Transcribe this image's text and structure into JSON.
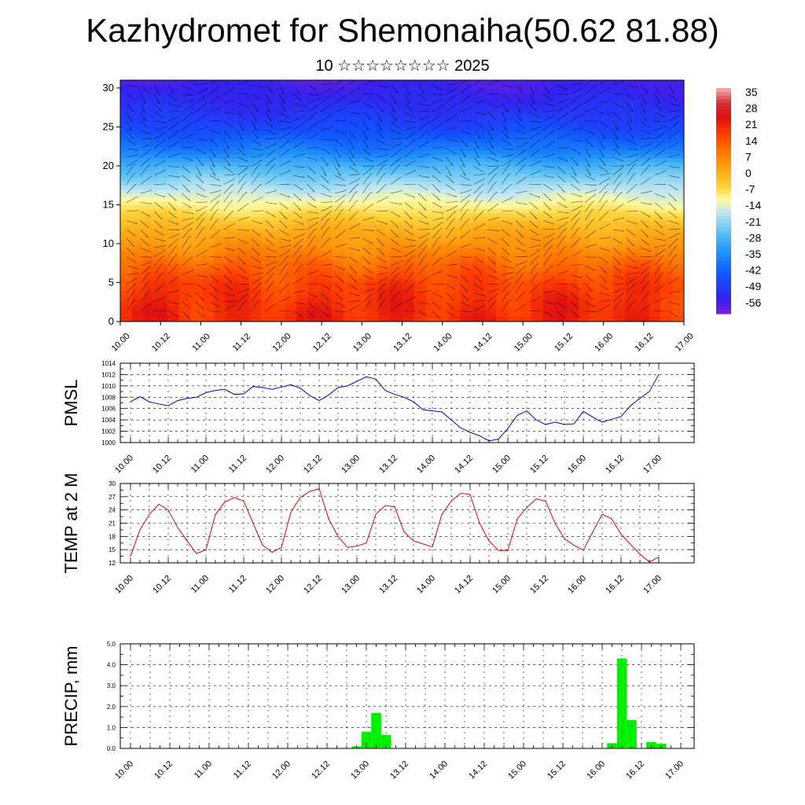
{
  "title": "Kazhydromet for Shemonaiha(50.62 81.88)",
  "subtitle": "10 ☆☆☆☆☆☆☆☆ 2025",
  "chart_data": [
    {
      "type": "heatmap",
      "name": "upper-air temperature and wind cross-section",
      "x_ticks": [
        "10.00",
        "10.12",
        "11.00",
        "11.12",
        "12.00",
        "12.12",
        "13.00",
        "13.12",
        "14.00",
        "14.12",
        "15.00",
        "15.12",
        "16.00",
        "16.12",
        "17.00"
      ],
      "y_ticks": [
        "0",
        "5",
        "10",
        "15",
        "20",
        "25",
        "30"
      ],
      "ylim": [
        0,
        31
      ],
      "colorbar_labels": [
        "35",
        "28",
        "21",
        "14",
        "7",
        "0",
        "-7",
        "-14",
        "-21",
        "-28",
        "-35",
        "-42",
        "-49",
        "-56"
      ],
      "colorbar_range": [
        -63,
        42
      ],
      "temperature_profile": {
        "levels": [
          0,
          2,
          5,
          8,
          10,
          12,
          15,
          18,
          20,
          22,
          25,
          28,
          31
        ],
        "values": [
          24,
          23,
          20,
          13,
          7,
          2,
          -9,
          -20,
          -28,
          -38,
          -48,
          -54,
          -58
        ]
      },
      "grid": false
    },
    {
      "type": "line",
      "ylabel": "PMSL",
      "x_ticks": [
        "10.00",
        "10.12",
        "11.00",
        "11.12",
        "12.00",
        "12.12",
        "13.00",
        "13.12",
        "14.00",
        "14.12",
        "15.00",
        "15.12",
        "16.00",
        "16.12",
        "17.00"
      ],
      "y_ticks": [
        "1000",
        "1002",
        "1004",
        "1006",
        "1008",
        "1010",
        "1012",
        "1014"
      ],
      "ylim": [
        1000,
        1014
      ],
      "color": "#0000cc",
      "values": [
        1007.2,
        1008.1,
        1007.2,
        1006.8,
        1006.5,
        1007.4,
        1007.8,
        1008.0,
        1008.8,
        1009.2,
        1009.4,
        1008.5,
        1008.6,
        1009.9,
        1009.7,
        1009.4,
        1009.8,
        1010.2,
        1009.6,
        1008.3,
        1007.4,
        1008.4,
        1009.7,
        1010.0,
        1010.8,
        1011.6,
        1011.2,
        1009.2,
        1008.5,
        1008.0,
        1007.2,
        1005.8,
        1005.6,
        1005.4,
        1004.0,
        1002.6,
        1001.8,
        1001.2,
        1000.3,
        1000.6,
        1002.5,
        1004.8,
        1005.6,
        1004.0,
        1003.2,
        1003.6,
        1003.2,
        1003.3,
        1005.5,
        1004.5,
        1003.6,
        1004.1,
        1004.6,
        1006.5,
        1007.8,
        1009.0,
        1012.0
      ]
    },
    {
      "type": "line",
      "ylabel": "TEMP at 2 M",
      "x_ticks": [
        "10.00",
        "10.12",
        "11.00",
        "11.12",
        "12.00",
        "12.12",
        "13.00",
        "13.12",
        "14.00",
        "14.12",
        "15.00",
        "15.12",
        "16.00",
        "16.12",
        "17.00"
      ],
      "y_ticks": [
        "12",
        "15",
        "18",
        "21",
        "24",
        "27",
        "30"
      ],
      "ylim": [
        12,
        30
      ],
      "color": "#dd0000",
      "values": [
        13.5,
        19.5,
        23.0,
        25.3,
        24.0,
        20.0,
        17.0,
        14.1,
        15.0,
        23.0,
        25.8,
        26.8,
        26.0,
        21.0,
        16.0,
        14.4,
        15.5,
        23.5,
        26.8,
        28.2,
        28.8,
        22.0,
        18.0,
        15.5,
        15.8,
        16.5,
        23.0,
        25.0,
        24.7,
        19.0,
        17.0,
        16.3,
        15.6,
        23.0,
        26.0,
        27.8,
        27.5,
        21.0,
        17.0,
        14.8,
        14.8,
        22.0,
        24.5,
        26.5,
        26.0,
        21.0,
        17.5,
        16.0,
        14.9,
        19.0,
        23.0,
        22.0,
        18.5,
        16.2,
        14.0,
        12.2,
        13.3
      ]
    },
    {
      "type": "bar",
      "ylabel": "PRECIP, mm",
      "x_ticks": [
        "10.00",
        "10.12",
        "11.00",
        "11.12",
        "12.00",
        "12.12",
        "13.00",
        "13.12",
        "14.00",
        "14.12",
        "15.00",
        "15.12",
        "16.00",
        "16.12",
        "17.00"
      ],
      "y_ticks": [
        "0.0",
        "1.0",
        "2.0",
        "3.0",
        "4.0",
        "5.0"
      ],
      "ylim": [
        0,
        5
      ],
      "color": "#00ee00",
      "bars": [
        {
          "step": 23,
          "value": 0.1
        },
        {
          "step": 24,
          "value": 0.8
        },
        {
          "step": 25,
          "value": 1.7
        },
        {
          "step": 26,
          "value": 0.65
        },
        {
          "step": 49,
          "value": 0.25
        },
        {
          "step": 50,
          "value": 4.3
        },
        {
          "step": 51,
          "value": 1.35
        },
        {
          "step": 53,
          "value": 0.3
        },
        {
          "step": 54,
          "value": 0.22
        }
      ]
    }
  ]
}
